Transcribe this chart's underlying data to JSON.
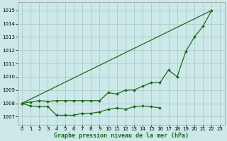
{
  "title": "Graphe pression niveau de la mer (hPa)",
  "background_color": "#cce8e8",
  "grid_color": "#aacccc",
  "line_color": "#1a6b1a",
  "marker_color": "#1a6b1a",
  "xlim": [
    -0.5,
    23.5
  ],
  "ylim": [
    1006.4,
    1015.6
  ],
  "yticks": [
    1007,
    1008,
    1009,
    1010,
    1011,
    1012,
    1013,
    1014,
    1015
  ],
  "xticks": [
    0,
    1,
    2,
    3,
    4,
    5,
    6,
    7,
    8,
    9,
    10,
    11,
    12,
    13,
    14,
    15,
    16,
    17,
    18,
    19,
    20,
    21,
    22,
    23
  ],
  "series1_x": [
    0,
    1,
    2,
    3,
    4,
    5,
    6,
    7,
    8,
    9,
    10,
    11,
    12,
    13,
    14,
    15,
    16
  ],
  "series1_y": [
    1008.0,
    1007.8,
    1007.75,
    1007.75,
    1007.1,
    1007.1,
    1007.1,
    1007.25,
    1007.25,
    1007.35,
    1007.55,
    1007.65,
    1007.55,
    1007.75,
    1007.8,
    1007.75,
    1007.65
  ],
  "series2_x": [
    0,
    1,
    2,
    3,
    4,
    5,
    6,
    7,
    8,
    9,
    10,
    11,
    12,
    13,
    14,
    15,
    16,
    17,
    18,
    19,
    20,
    21,
    22
  ],
  "series2_y": [
    1008.0,
    1008.1,
    1008.2,
    1008.15,
    1008.2,
    1008.2,
    1008.2,
    1008.2,
    1008.2,
    1008.2,
    1008.8,
    1008.7,
    1009.0,
    1009.0,
    1009.3,
    1009.55,
    1009.55,
    1010.5,
    1010.0,
    1011.9,
    1013.0,
    1013.8,
    1015.0
  ],
  "series3_x": [
    0,
    22
  ],
  "series3_y": [
    1008.0,
    1015.0
  ]
}
